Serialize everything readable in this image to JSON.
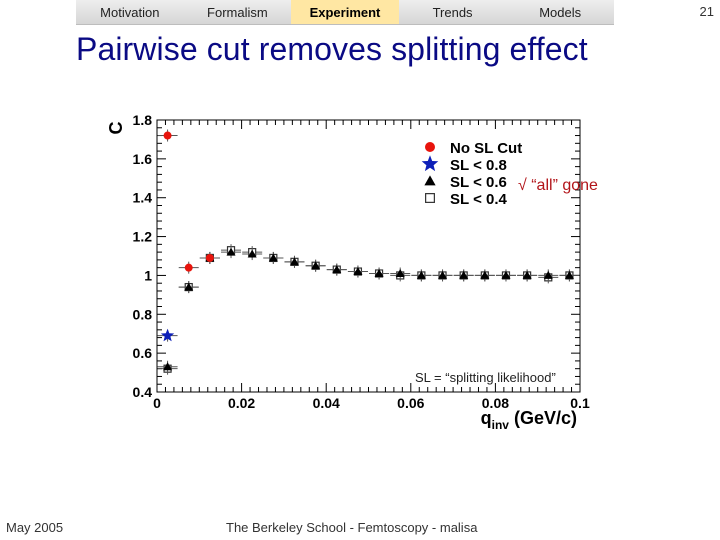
{
  "nav": {
    "items": [
      "Motivation",
      "Formalism",
      "Experiment",
      "Trends",
      "Models"
    ],
    "active_index": 2
  },
  "slide_number": "21",
  "title": "Pairwise cut removes splitting effect",
  "annotations": {
    "sqrt_note": "√ “all” gone",
    "sl_definition": "SL = “splitting likelihood”"
  },
  "footer": {
    "date": "May 2005",
    "text": "The Berkeley School - Femtoscopy - malisa"
  },
  "colors": {
    "title": "#0a0a84",
    "note": "#b2151a",
    "active_tab": "#ffe7a3",
    "no_sl_cut": "#e8140c",
    "sl_08": "#0d1fb8"
  },
  "chart_data": {
    "type": "scatter",
    "title": "",
    "ylabel": "C",
    "xlabel_main": "q",
    "xlabel_sub": "inv",
    "xlabel_unit": " (GeV/c)",
    "xlim": [
      0,
      0.1
    ],
    "ylim": [
      0.4,
      1.8
    ],
    "x_ticks": [
      0,
      0.02,
      0.04,
      0.06,
      0.08,
      0.1
    ],
    "x_tick_labels": [
      "0",
      "0.02",
      "0.04",
      "0.06",
      "0.08",
      "0.1"
    ],
    "y_ticks": [
      0.4,
      0.6,
      0.8,
      1.0,
      1.2,
      1.4,
      1.6,
      1.8
    ],
    "y_tick_labels": [
      "0.4",
      "0.6",
      "0.8",
      "1",
      "1.2",
      "1.4",
      "1.6",
      "1.8"
    ],
    "legend_position": "top-right",
    "series": [
      {
        "name": "No SL Cut",
        "marker": "circle",
        "color": "#e8140c",
        "points": [
          [
            0.0025,
            1.72
          ],
          [
            0.0075,
            1.04
          ],
          [
            0.0125,
            1.09
          ]
        ]
      },
      {
        "name": "SL < 0.8",
        "marker": "star",
        "color": "#0d1fb8",
        "points": [
          [
            0.0025,
            0.69
          ]
        ]
      },
      {
        "name": "SL < 0.6",
        "marker": "triangle",
        "color": "#000000",
        "points": [
          [
            0.0025,
            0.53
          ],
          [
            0.0075,
            0.94
          ],
          [
            0.0125,
            1.09
          ],
          [
            0.0175,
            1.12
          ],
          [
            0.0225,
            1.11
          ],
          [
            0.0275,
            1.09
          ],
          [
            0.0325,
            1.07
          ],
          [
            0.0375,
            1.05
          ],
          [
            0.0425,
            1.03
          ],
          [
            0.0475,
            1.02
          ],
          [
            0.0525,
            1.01
          ],
          [
            0.0575,
            1.01
          ],
          [
            0.0625,
            1.0
          ],
          [
            0.0675,
            1.0
          ],
          [
            0.0725,
            1.0
          ],
          [
            0.0775,
            1.0
          ],
          [
            0.0825,
            1.0
          ],
          [
            0.0875,
            1.0
          ],
          [
            0.0925,
            1.0
          ],
          [
            0.0975,
            1.0
          ]
        ]
      },
      {
        "name": "SL < 0.4",
        "marker": "square",
        "color": "#333333",
        "points": [
          [
            0.0025,
            0.52
          ],
          [
            0.0075,
            0.94
          ],
          [
            0.0125,
            1.09
          ],
          [
            0.0175,
            1.13
          ],
          [
            0.0225,
            1.12
          ],
          [
            0.0275,
            1.09
          ],
          [
            0.0325,
            1.07
          ],
          [
            0.0375,
            1.05
          ],
          [
            0.0425,
            1.03
          ],
          [
            0.0475,
            1.02
          ],
          [
            0.0525,
            1.01
          ],
          [
            0.0575,
            1.0
          ],
          [
            0.0625,
            1.0
          ],
          [
            0.0675,
            1.0
          ],
          [
            0.0725,
            1.0
          ],
          [
            0.0775,
            1.0
          ],
          [
            0.0825,
            1.0
          ],
          [
            0.0875,
            1.0
          ],
          [
            0.0925,
            0.99
          ],
          [
            0.0975,
            1.0
          ]
        ]
      }
    ]
  }
}
